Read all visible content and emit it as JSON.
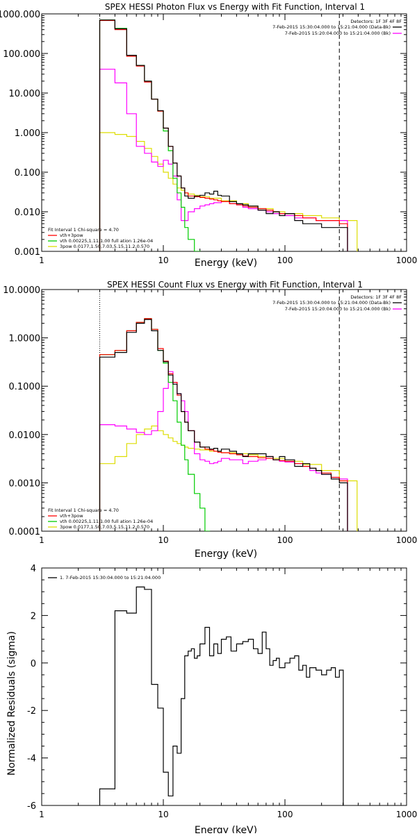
{
  "colors": {
    "total": "#000000",
    "model_sum": "#ff0000",
    "thermal": "#00cc00",
    "power_law": "#dddd00",
    "background": "#ff00ff",
    "residual": "#000000"
  },
  "chart_data": [
    {
      "type": "line",
      "title": "SPEX HESSI Photon Flux vs Energy with Fit Function, Interval 1",
      "xlabel": "Energy (keV)",
      "ylabel": "",
      "xscale": "log",
      "yscale": "log",
      "xlim": [
        1,
        1000
      ],
      "ylim": [
        0.001,
        1000
      ],
      "x_ticks": [
        "1",
        "10",
        "100",
        "1000"
      ],
      "y_ticks": [
        "0.001",
        "0.010",
        "0.100",
        "1.000",
        "10.000",
        "100.000",
        "1000.000"
      ],
      "legend_top_right": {
        "header": "Detectors: 1F 3F 4F 8F",
        "lines": [
          "7-Feb-2015 15:30:04.000 to 15:21:04.000 (Data-Bk)",
          "7-Feb-2015 15:20:04.000 to 15:21:04.000 (Bk)"
        ]
      },
      "legend_bottom_left": {
        "header": "Fit Interval 1    Chi-square = 4.70",
        "lines": [
          "vth+3pow",
          "vth 0.00225,1.11,1.00  full ation 1.26e-04",
          "3pow 0.0177,1.50,7.03,5.15,11.2,0.570"
        ]
      },
      "energy_range_keV": [
        3,
        280
      ],
      "series": [
        {
          "name": "Data-Bk",
          "x": [
            3,
            4,
            5,
            6,
            7,
            8,
            9,
            10,
            11,
            12,
            13,
            14,
            15,
            16,
            18,
            20,
            22,
            24,
            26,
            28,
            30,
            35,
            40,
            45,
            50,
            60,
            70,
            80,
            90,
            100,
            120,
            140,
            160,
            180,
            200,
            240,
            280
          ],
          "y": [
            700,
            420,
            90,
            50,
            20,
            7,
            3.6,
            1.3,
            0.45,
            0.17,
            0.08,
            0.04,
            0.025,
            0.022,
            0.025,
            0.026,
            0.03,
            0.028,
            0.033,
            0.026,
            0.025,
            0.018,
            0.016,
            0.015,
            0.014,
            0.011,
            0.009,
            0.01,
            0.008,
            0.009,
            0.006,
            0.005,
            0.005,
            0.005,
            0.004,
            0.004,
            0.004
          ]
        },
        {
          "name": "vth+3pow",
          "x": [
            3,
            4,
            5,
            6,
            7,
            8,
            9,
            10,
            11,
            12,
            13,
            14,
            15,
            16,
            18,
            20,
            22,
            24,
            26,
            28,
            30,
            35,
            40,
            45,
            50,
            60,
            70,
            80,
            90,
            100,
            120,
            140,
            160,
            180,
            200,
            240,
            280
          ],
          "y": [
            680,
            400,
            85,
            48,
            19,
            7,
            3.5,
            1.3,
            0.45,
            0.17,
            0.08,
            0.04,
            0.03,
            0.025,
            0.024,
            0.023,
            0.022,
            0.021,
            0.02,
            0.019,
            0.018,
            0.016,
            0.015,
            0.014,
            0.013,
            0.012,
            0.011,
            0.01,
            0.009,
            0.009,
            0.008,
            0.007,
            0.007,
            0.006,
            0.006,
            0.006,
            0.005
          ]
        },
        {
          "name": "vth",
          "x": [
            3,
            4,
            5,
            6,
            7,
            8,
            9,
            10,
            11,
            12,
            13,
            14,
            15,
            16,
            18
          ],
          "y": [
            700,
            430,
            90,
            50,
            20,
            7,
            3.5,
            1.1,
            0.35,
            0.07,
            0.03,
            0.013,
            0.004,
            0.002,
            0.001
          ]
        },
        {
          "name": "3pow",
          "x": [
            3,
            4,
            5,
            6,
            7,
            8,
            9,
            10,
            11,
            12,
            13,
            14,
            15,
            16,
            18,
            20,
            24,
            30,
            40,
            50,
            60,
            80,
            100,
            140,
            200,
            280
          ],
          "y": [
            1.0,
            0.9,
            0.8,
            0.6,
            0.4,
            0.25,
            0.16,
            0.1,
            0.07,
            0.05,
            0.04,
            0.035,
            0.03,
            0.028,
            0.026,
            0.024,
            0.022,
            0.019,
            0.016,
            0.014,
            0.012,
            0.01,
            0.009,
            0.008,
            0.007,
            0.006
          ]
        },
        {
          "name": "Bk",
          "x": [
            3,
            4,
            5,
            6,
            7,
            8,
            9,
            10,
            11,
            12,
            13,
            14,
            15,
            16,
            18,
            20,
            22,
            24,
            26,
            28,
            30,
            35,
            40,
            45,
            50,
            60,
            70,
            80,
            90,
            100,
            120,
            140,
            160,
            180,
            200,
            240,
            280
          ],
          "y": [
            40,
            18,
            3.0,
            0.45,
            0.3,
            0.18,
            0.14,
            0.2,
            0.16,
            0.08,
            0.02,
            0.006,
            0.006,
            0.01,
            0.012,
            0.014,
            0.015,
            0.016,
            0.017,
            0.017,
            0.018,
            0.016,
            0.015,
            0.013,
            0.012,
            0.011,
            0.01,
            0.009,
            0.009,
            0.008,
            0.007,
            0.007,
            0.007,
            0.006,
            0.006,
            0.006,
            0.006
          ]
        }
      ]
    },
    {
      "type": "line",
      "title": "SPEX HESSI Count Flux vs Energy with Fit Function, Interval 1",
      "xlabel": "Energy (keV)",
      "ylabel": "",
      "xscale": "log",
      "yscale": "log",
      "xlim": [
        1,
        1000
      ],
      "ylim": [
        0.0001,
        10
      ],
      "x_ticks": [
        "1",
        "10",
        "100",
        "1000"
      ],
      "y_ticks": [
        "0.0001",
        "0.0010",
        "0.0100",
        "0.1000",
        "1.0000",
        "10.0000"
      ],
      "legend_top_right": {
        "header": "Detectors: 1F 3F 4F 8F",
        "lines": [
          "7-Feb-2015 15:30:04.000 to 15:21:04.000 (Data-Bk)",
          "7-Feb-2015 15:20:04.000 to 15:21:04.000 (Bk)"
        ]
      },
      "legend_bottom_left": {
        "header": "Fit Interval 1    Chi-square = 4.70",
        "lines": [
          "vth+3pow",
          "vth 0.00225,1.11,1.00  full ation 1.26e-04",
          "3pow 0.0177,1.50,7.03,5.15,11.2,0.570"
        ]
      },
      "energy_range_keV": [
        3,
        280
      ],
      "series": [
        {
          "name": "Data-Bk",
          "x": [
            3,
            4,
            5,
            6,
            7,
            8,
            9,
            10,
            11,
            12,
            13,
            14,
            15,
            16,
            18,
            20,
            22,
            24,
            26,
            28,
            30,
            35,
            40,
            45,
            50,
            60,
            70,
            80,
            90,
            100,
            120,
            140,
            160,
            180,
            200,
            240,
            280
          ],
          "y": [
            0.4,
            0.5,
            1.3,
            2.0,
            2.4,
            1.4,
            0.55,
            0.32,
            0.17,
            0.11,
            0.07,
            0.03,
            0.018,
            0.012,
            0.007,
            0.0055,
            0.0055,
            0.005,
            0.0052,
            0.0045,
            0.005,
            0.0045,
            0.004,
            0.0035,
            0.004,
            0.004,
            0.0035,
            0.003,
            0.0035,
            0.003,
            0.0022,
            0.0025,
            0.002,
            0.0018,
            0.0015,
            0.0012,
            0.001
          ]
        },
        {
          "name": "vth+3pow",
          "x": [
            3,
            4,
            5,
            6,
            7,
            8,
            9,
            10,
            11,
            12,
            13,
            14,
            15,
            16,
            18,
            20,
            22,
            24,
            26,
            28,
            30,
            35,
            40,
            45,
            50,
            60,
            70,
            80,
            90,
            100,
            120,
            140,
            160,
            180,
            200,
            240,
            280
          ],
          "y": [
            0.45,
            0.55,
            1.4,
            2.1,
            2.5,
            1.5,
            0.6,
            0.33,
            0.18,
            0.12,
            0.065,
            0.03,
            0.018,
            0.012,
            0.007,
            0.0055,
            0.005,
            0.0048,
            0.0045,
            0.0043,
            0.0042,
            0.004,
            0.0038,
            0.0036,
            0.0035,
            0.0033,
            0.0032,
            0.003,
            0.0029,
            0.0028,
            0.0025,
            0.0022,
            0.002,
            0.0018,
            0.0016,
            0.0013,
            0.0011
          ]
        },
        {
          "name": "vth",
          "x": [
            3,
            4,
            5,
            6,
            7,
            8,
            9,
            10,
            11,
            12,
            13,
            14,
            15,
            16,
            18,
            20,
            22
          ],
          "y": [
            0.45,
            0.55,
            1.4,
            2.1,
            2.5,
            1.5,
            0.55,
            0.3,
            0.12,
            0.05,
            0.018,
            0.006,
            0.003,
            0.0015,
            0.0006,
            0.0003,
            0.0001
          ]
        },
        {
          "name": "3pow",
          "x": [
            3,
            4,
            5,
            6,
            7,
            8,
            9,
            10,
            11,
            12,
            13,
            14,
            15,
            16,
            18,
            20,
            24,
            30,
            40,
            50,
            60,
            80,
            100,
            140,
            200,
            280
          ],
          "y": [
            0.0025,
            0.0035,
            0.0065,
            0.01,
            0.013,
            0.015,
            0.012,
            0.01,
            0.0085,
            0.0072,
            0.0065,
            0.006,
            0.0055,
            0.0052,
            0.005,
            0.0048,
            0.0045,
            0.0042,
            0.004,
            0.0038,
            0.0035,
            0.0032,
            0.0028,
            0.0024,
            0.0018,
            0.0011
          ]
        },
        {
          "name": "Bk",
          "x": [
            3,
            4,
            5,
            6,
            7,
            8,
            9,
            10,
            11,
            12,
            13,
            14,
            15,
            16,
            18,
            20,
            22,
            24,
            26,
            28,
            30,
            35,
            40,
            45,
            50,
            60,
            70,
            80,
            90,
            100,
            120,
            140,
            160,
            180,
            200,
            240,
            280
          ],
          "y": [
            0.016,
            0.015,
            0.013,
            0.011,
            0.01,
            0.012,
            0.03,
            0.09,
            0.2,
            0.12,
            0.07,
            0.05,
            0.03,
            0.012,
            0.004,
            0.003,
            0.0028,
            0.0025,
            0.0026,
            0.0028,
            0.0032,
            0.003,
            0.003,
            0.0025,
            0.0028,
            0.003,
            0.0035,
            0.003,
            0.0028,
            0.0027,
            0.0025,
            0.0022,
            0.0018,
            0.0016,
            0.0015,
            0.0013,
            0.0012
          ]
        }
      ]
    },
    {
      "type": "line",
      "title": "",
      "xlabel": "Energy (keV)",
      "ylabel": "Normalized Residuals (sigma)",
      "xscale": "log",
      "yscale": "linear",
      "xlim": [
        1,
        1000
      ],
      "ylim": [
        -6,
        4
      ],
      "x_ticks": [
        "1",
        "10",
        "100",
        "1000"
      ],
      "y_ticks": [
        "-6",
        "-4",
        "-2",
        "0",
        "2",
        "4"
      ],
      "legend_top_left": [
        "1.  7-Feb-2015 15:30:04.000 to 15:21:04.000"
      ],
      "series": [
        {
          "name": "1.  7-Feb-2015 15:30:04.000 to 15:21:04.000",
          "x": [
            3,
            4,
            5,
            6,
            7,
            8,
            9,
            10,
            11,
            12,
            13,
            14,
            15,
            16,
            17,
            18,
            19,
            20,
            22,
            24,
            26,
            28,
            30,
            33,
            36,
            40,
            45,
            50,
            55,
            60,
            65,
            70,
            75,
            80,
            85,
            90,
            100,
            110,
            120,
            130,
            140,
            150,
            160,
            180,
            200,
            220,
            240,
            260,
            280
          ],
          "y": [
            -5.3,
            2.2,
            2.1,
            3.2,
            3.1,
            -0.9,
            -1.9,
            -4.6,
            -5.6,
            -3.5,
            -3.8,
            -1.5,
            0.3,
            0.5,
            0.6,
            0.2,
            0.3,
            0.8,
            1.5,
            0.3,
            0.8,
            0.4,
            1.0,
            1.1,
            0.5,
            0.8,
            0.9,
            1.0,
            0.6,
            0.4,
            1.3,
            0.6,
            -0.1,
            0.1,
            0.2,
            -0.2,
            0.0,
            0.2,
            0.3,
            -0.3,
            -0.1,
            -0.6,
            -0.2,
            -0.3,
            -0.5,
            -0.3,
            -0.2,
            -0.6,
            -0.3
          ]
        }
      ]
    }
  ]
}
